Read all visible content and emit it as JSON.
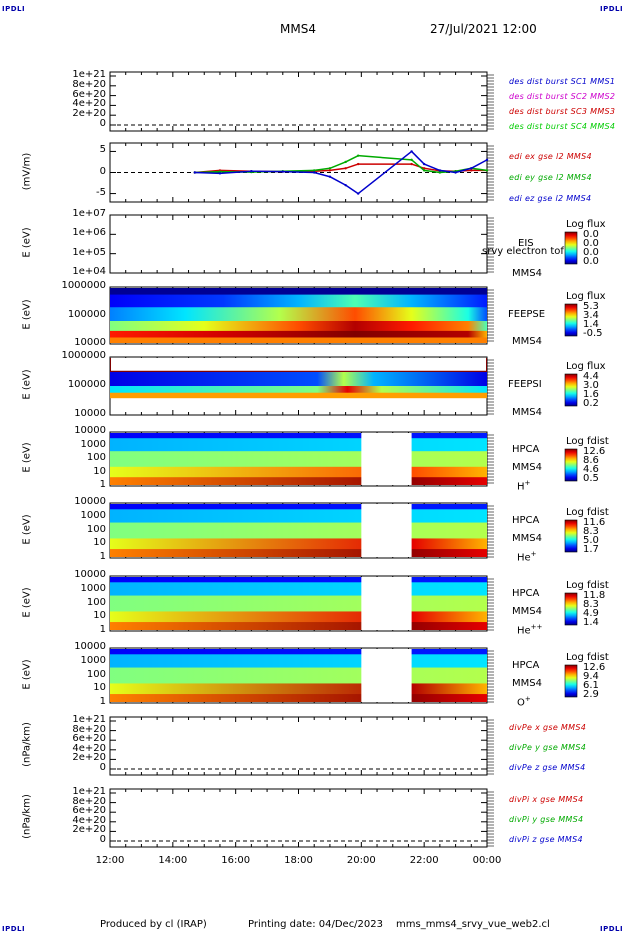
{
  "header": {
    "corner_label": "IPDLI",
    "spacecraft": "MMS4",
    "datetime": "27/Jul/2021 12:00"
  },
  "footer": {
    "producer": "Produced by cl (IRAP)",
    "printing": "Printing date: 04/Dec/2023",
    "script": "mms_mms4_srvy_vue_web2.cl"
  },
  "time_axis": {
    "ticks": [
      "12:00",
      "14:00",
      "16:00",
      "18:00",
      "20:00",
      "22:00",
      "00:00"
    ],
    "range_hours": [
      12,
      24
    ]
  },
  "panels": [
    {
      "key": "p1",
      "ylabel": "",
      "ticks": [
        "1e+21",
        "8e+20",
        "6e+20",
        "4e+20",
        "2e+20",
        "0"
      ],
      "legend": [
        {
          "text": "des dist burst SC1 MMS1",
          "color": "#0000cc"
        },
        {
          "text": "des dist burst SC2 MMS2",
          "color": "#cc00cc"
        },
        {
          "text": "des dist burst SC3 MMS3",
          "color": "#cc0000"
        },
        {
          "text": "des dist burst SC4 MMS4",
          "color": "#00cc00"
        }
      ]
    },
    {
      "key": "p2",
      "ylabel": "(mV/m)",
      "ticks": [
        "5",
        "0",
        "-5"
      ],
      "legend": [
        {
          "text": "edi ex gse l2 MMS4",
          "color": "#cc0000"
        },
        {
          "text": "edi ey gse l2 MMS4",
          "color": "#00aa00"
        },
        {
          "text": "edi ez gse l2 MMS4",
          "color": "#0000cc"
        }
      ]
    },
    {
      "key": "p3",
      "ylabel": "E (eV)",
      "ticks": [
        "1e+07",
        "1e+06",
        "1e+05",
        "1e+04"
      ],
      "instrument": "EIS",
      "sub": "MMS4",
      "extra": "srvy electron tof",
      "cb_title": "Log flux",
      "cb_values": [
        "0.0",
        "0.0",
        "0.0",
        "0.0"
      ]
    },
    {
      "key": "p4",
      "ylabel": "E (eV)",
      "ticks": [
        "1000000",
        "100000",
        "10000"
      ],
      "instrument": "FEEPSE",
      "sub": "MMS4",
      "cb_title": "Log flux",
      "cb_values": [
        "5.3",
        "3.4",
        "1.4",
        "-0.5"
      ]
    },
    {
      "key": "p5",
      "ylabel": "E (eV)",
      "ticks": [
        "1000000",
        "100000",
        "10000"
      ],
      "instrument": "FEEPSI",
      "sub": "MMS4",
      "cb_title": "Log flux",
      "cb_values": [
        "4.4",
        "3.0",
        "1.6",
        "0.2"
      ]
    },
    {
      "key": "p6",
      "ylabel": "E (eV)",
      "ticks": [
        "10000",
        "1000",
        "100",
        "10",
        "1"
      ],
      "instrument": "HPCA",
      "sub": "MMS4",
      "species": "H",
      "species_sup": "+",
      "cb_title": "Log fdist",
      "cb_values": [
        "12.6",
        "8.6",
        "4.6",
        "0.5"
      ]
    },
    {
      "key": "p7",
      "ylabel": "E (eV)",
      "ticks": [
        "10000",
        "1000",
        "100",
        "10",
        "1"
      ],
      "instrument": "HPCA",
      "sub": "MMS4",
      "species": "He",
      "species_sup": "+",
      "cb_title": "Log fdist",
      "cb_values": [
        "11.6",
        "8.3",
        "5.0",
        "1.7"
      ]
    },
    {
      "key": "p8",
      "ylabel": "E (eV)",
      "ticks": [
        "10000",
        "1000",
        "100",
        "10",
        "1"
      ],
      "instrument": "HPCA",
      "sub": "MMS4",
      "species": "He",
      "species_sup": "++",
      "cb_title": "Log fdist",
      "cb_values": [
        "11.8",
        "8.3",
        "4.9",
        "1.4"
      ]
    },
    {
      "key": "p9",
      "ylabel": "E (eV)",
      "ticks": [
        "10000",
        "1000",
        "100",
        "10",
        "1"
      ],
      "instrument": "HPCA",
      "sub": "MMS4",
      "species": "O",
      "species_sup": "+",
      "cb_title": "Log fdist",
      "cb_values": [
        "12.6",
        "9.4",
        "6.1",
        "2.9"
      ]
    },
    {
      "key": "p10",
      "ylabel": "(nPa/km)",
      "ticks": [
        "1e+21",
        "8e+20",
        "6e+20",
        "4e+20",
        "2e+20",
        "0"
      ],
      "legend": [
        {
          "text": "divPe x gse MMS4",
          "color": "#cc0000"
        },
        {
          "text": "divPe y gse MMS4",
          "color": "#00aa00"
        },
        {
          "text": "divPe z gse MMS4",
          "color": "#0000cc"
        }
      ]
    },
    {
      "key": "p11",
      "ylabel": "(nPa/km)",
      "ticks": [
        "1e+21",
        "8e+20",
        "6e+20",
        "4e+20",
        "2e+20",
        "0"
      ],
      "legend": [
        {
          "text": "divPi x gse MMS4",
          "color": "#cc0000"
        },
        {
          "text": "divPi y gse MMS4",
          "color": "#00aa00"
        },
        {
          "text": "divPi z gse MMS4",
          "color": "#0000cc"
        }
      ]
    }
  ],
  "chart_data": {
    "type": "line",
    "title": "MMS4 27/Jul/2021 12:00",
    "x_ticks": [
      "12:00",
      "14:00",
      "16:00",
      "18:00",
      "20:00",
      "22:00",
      "00:00"
    ],
    "edi_efield": {
      "ylim": [
        -7,
        7
      ],
      "x_hours": [
        14.7,
        15.5,
        16.5,
        17.5,
        18.5,
        19.0,
        19.5,
        19.9,
        21.6,
        22.0,
        22.5,
        23.0,
        23.5,
        24.0
      ],
      "series": [
        {
          "name": "edi ex gse l2 MMS4",
          "values": [
            0,
            0.5,
            0.3,
            0.2,
            0.3,
            0.5,
            1.0,
            2.0,
            2.0,
            1.0,
            0.4,
            0.3,
            0.5,
            0.5
          ]
        },
        {
          "name": "edi ey gse l2 MMS4",
          "values": [
            0,
            0.2,
            0.1,
            0.3,
            0.5,
            1.0,
            2.5,
            4.0,
            3.0,
            0.5,
            0.0,
            0.3,
            1.0,
            0.5
          ]
        },
        {
          "name": "edi ez gse l2 MMS4",
          "values": [
            0,
            -0.2,
            0.3,
            0.2,
            0.0,
            -1.0,
            -3.0,
            -5.0,
            5.0,
            2.0,
            0.5,
            0.0,
            1.0,
            3.0
          ]
        }
      ],
      "data_gap_hours": [
        20.0,
        21.6
      ]
    },
    "hpca_data_gap_hours": [
      20.0,
      21.6
    ]
  }
}
